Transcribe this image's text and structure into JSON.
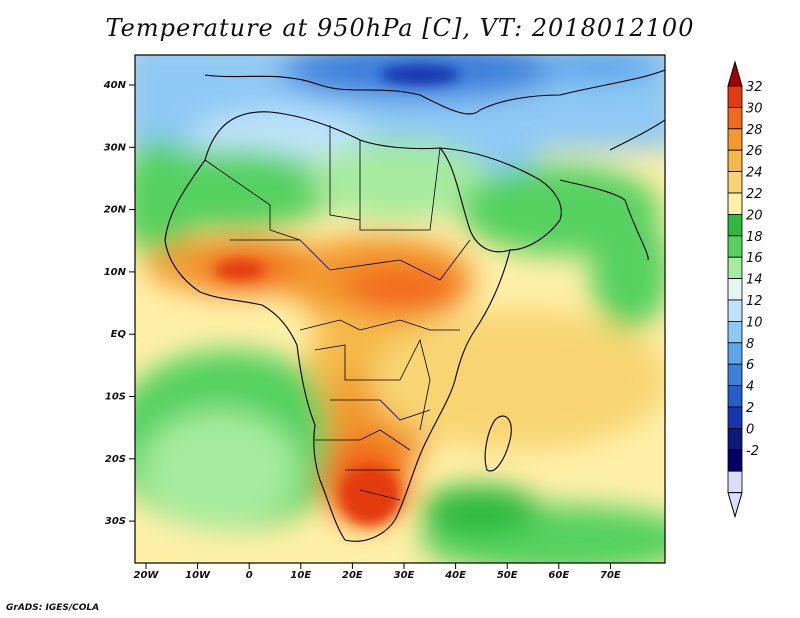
{
  "title": "Temperature at 950hPa [C], VT: 2018012100",
  "footer": "GrADS: IGES/COLA",
  "map": {
    "lat_labels": [
      "40N",
      "30N",
      "20N",
      "10N",
      "EQ",
      "10S",
      "20S",
      "30S"
    ],
    "lon_labels": [
      "20W",
      "10W",
      "0",
      "10E",
      "20E",
      "30E",
      "40E",
      "50E",
      "60E",
      "70E"
    ]
  },
  "colorbar": {
    "values": [
      "32",
      "30",
      "28",
      "26",
      "24",
      "22",
      "20",
      "18",
      "16",
      "14",
      "12",
      "10",
      "8",
      "6",
      "4",
      "2",
      "0",
      "-2"
    ],
    "colors": [
      "#a50000",
      "#e33a0e",
      "#f26a1c",
      "#f29a2e",
      "#f5b949",
      "#f8d572",
      "#fff0a8",
      "#2fba3c",
      "#55d160",
      "#a6eb9e",
      "#e4f7ee",
      "#bfe4fa",
      "#8ec9f4",
      "#5ca6ec",
      "#3b7fdc",
      "#275ccd",
      "#1735ae",
      "#0c1b7a",
      "#000066",
      "#dcdcff"
    ]
  }
}
